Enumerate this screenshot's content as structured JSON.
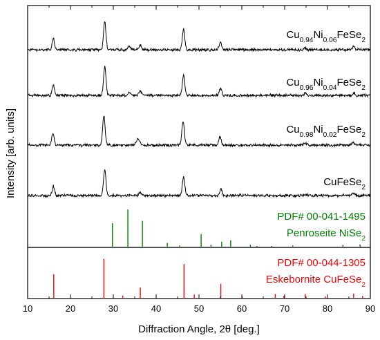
{
  "chart_data": {
    "type": "line",
    "xlabel": "Diffraction Angle, 2θ [deg.]",
    "ylabel": "Intensity [arb. units]",
    "xlim": [
      10,
      90
    ],
    "xticks": [
      10,
      20,
      30,
      40,
      50,
      60,
      70,
      80,
      90
    ],
    "grid": false,
    "panels": {
      "top": {
        "series": [
          {
            "label_parts": [
              [
                "Cu",
                ""
              ],
              [
                "0.94",
                "sub"
              ],
              [
                "Ni",
                ""
              ],
              [
                "0.06",
                "sub"
              ],
              [
                "FeSe",
                ""
              ],
              [
                "2",
                "sub"
              ]
            ],
            "offset": 3,
            "peaks": [
              [
                16.0,
                0.33
              ],
              [
                28.0,
                0.85
              ],
              [
                33.7,
                0.1
              ],
              [
                36.3,
                0.14
              ],
              [
                46.4,
                0.65
              ],
              [
                55.0,
                0.22
              ],
              [
                74.8,
                0.06
              ],
              [
                86.1,
                0.08
              ]
            ]
          },
          {
            "label_parts": [
              [
                "Cu",
                ""
              ],
              [
                "0.96",
                "sub"
              ],
              [
                "Ni",
                ""
              ],
              [
                "0.04",
                "sub"
              ],
              [
                "FeSe",
                ""
              ],
              [
                "2",
                "sub"
              ]
            ],
            "offset": 2,
            "peaks": [
              [
                16.0,
                0.3
              ],
              [
                28.0,
                0.85
              ],
              [
                33.7,
                0.1
              ],
              [
                36.3,
                0.13
              ],
              [
                46.4,
                0.62
              ],
              [
                55.0,
                0.21
              ],
              [
                74.8,
                0.06
              ],
              [
                86.1,
                0.08
              ]
            ]
          },
          {
            "label_parts": [
              [
                "Cu",
                ""
              ],
              [
                "0.98",
                "sub"
              ],
              [
                "Ni",
                ""
              ],
              [
                "0.02",
                "sub"
              ],
              [
                "FeSe",
                ""
              ],
              [
                "2",
                "sub"
              ]
            ],
            "offset": 1,
            "peaks": [
              [
                15.9,
                0.35
              ],
              [
                27.8,
                0.9
              ],
              [
                35.5,
                0.12
              ],
              [
                36.0,
                0.14
              ],
              [
                46.3,
                0.72
              ],
              [
                54.9,
                0.26
              ],
              [
                74.8,
                0.07
              ],
              [
                85.9,
                0.09
              ]
            ]
          },
          {
            "label_parts": [
              [
                "CuFeSe",
                ""
              ],
              [
                "2",
                "sub"
              ]
            ],
            "offset": 0,
            "peaks": [
              [
                16.0,
                0.3
              ],
              [
                28.0,
                0.8
              ],
              [
                36.3,
                0.1
              ],
              [
                46.4,
                0.58
              ],
              [
                55.1,
                0.2
              ],
              [
                74.8,
                0.05
              ],
              [
                86.1,
                0.07
              ]
            ]
          }
        ],
        "reference": {
          "color": "#008000",
          "title": "PDF# 00-041-1495",
          "name_parts": [
            [
              "Penroseite NiSe",
              ""
            ],
            [
              "2",
              "sub"
            ]
          ],
          "sticks": [
            [
              29.8,
              0.62
            ],
            [
              33.4,
              0.98
            ],
            [
              36.8,
              0.68
            ],
            [
              42.6,
              0.1
            ],
            [
              45.5,
              0.03
            ],
            [
              50.5,
              0.33
            ],
            [
              52.8,
              0.05
            ],
            [
              55.3,
              0.13
            ],
            [
              57.4,
              0.17
            ],
            [
              62.0,
              0.05
            ],
            [
              63.5,
              0.02
            ],
            [
              66.9,
              0.02
            ],
            [
              71.9,
              0.03
            ],
            [
              83.6,
              0.05
            ],
            [
              87.6,
              0.06
            ]
          ]
        }
      },
      "bottom": {
        "reference": {
          "color": "#ff0000",
          "title": "PDF# 00-044-1305",
          "name_parts": [
            [
              "Eskebornite CuFeSe",
              ""
            ],
            [
              "2",
              "sub"
            ]
          ],
          "sticks": [
            [
              16.1,
              0.5
            ],
            [
              27.8,
              0.83
            ],
            [
              32.2,
              0.05
            ],
            [
              36.3,
              0.22
            ],
            [
              46.5,
              0.72
            ],
            [
              48.9,
              0.07
            ],
            [
              55.1,
              0.3
            ],
            [
              60.1,
              0.03
            ],
            [
              67.8,
              0.08
            ],
            [
              69.8,
              0.04
            ],
            [
              74.8,
              0.08
            ],
            [
              79.5,
              0.03
            ],
            [
              86.1,
              0.09
            ],
            [
              88.2,
              0.04
            ]
          ]
        }
      }
    }
  }
}
